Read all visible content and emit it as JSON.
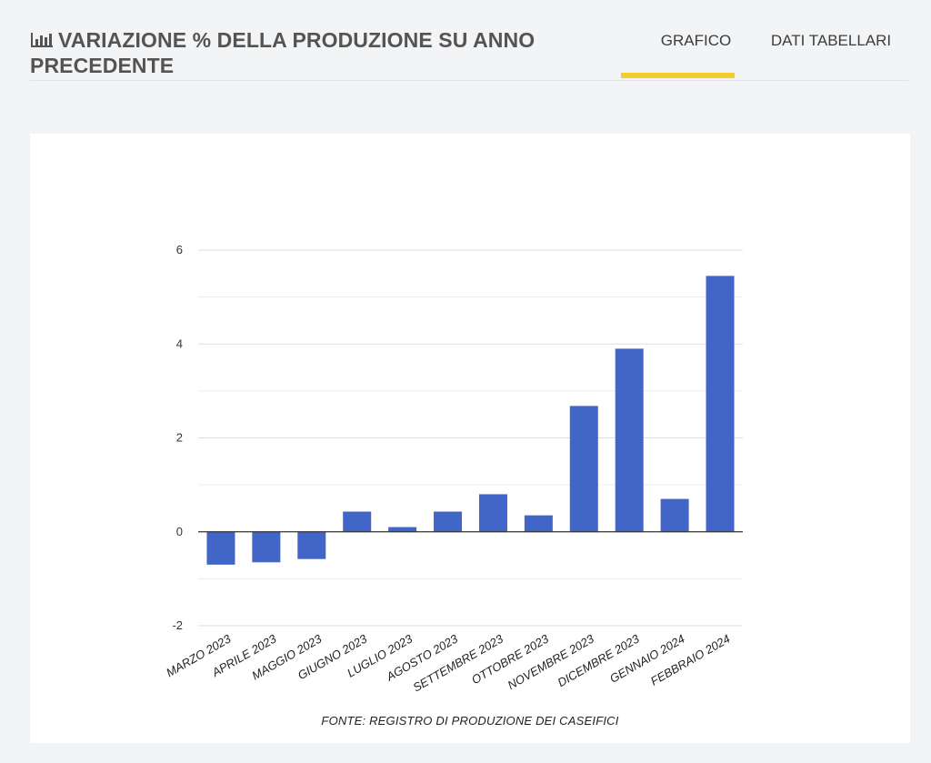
{
  "header": {
    "icon": "bar-chart-icon",
    "title": "VARIAZIONE % DELLA PRODUZIONE SU ANNO PRECEDENTE"
  },
  "tabs": [
    {
      "label": "GRAFICO",
      "active": true
    },
    {
      "label": "DATI TABELLARI",
      "active": false
    }
  ],
  "colors": {
    "bar": "#4266c8",
    "tab_underline": "#f2cd2c",
    "grid": "#dddddd",
    "zero_line": "#333333",
    "background": "#f3f4f6"
  },
  "chart_data": {
    "type": "bar",
    "categories": [
      "MARZO 2023",
      "APRILE 2023",
      "MAGGIO 2023",
      "GIUGNO 2023",
      "LUGLIO 2023",
      "AGOSTO 2023",
      "SETTEMBRE 2023",
      "OTTOBRE 2023",
      "NOVEMBRE 2023",
      "DICEMBRE 2023",
      "GENNAIO 2024",
      "FEBBRAIO 2024"
    ],
    "values": [
      -0.7,
      -0.65,
      -0.58,
      0.43,
      0.1,
      0.43,
      0.8,
      0.35,
      2.68,
      3.9,
      0.7,
      5.45
    ],
    "title": "",
    "xlabel": "",
    "ylabel": "",
    "ylim": [
      -2,
      6
    ],
    "yticks": [
      -2,
      0,
      2,
      4,
      6
    ],
    "grid": true,
    "legend": "none"
  },
  "source": "FONTE: REGISTRO DI PRODUZIONE DEI CASEIFICI"
}
